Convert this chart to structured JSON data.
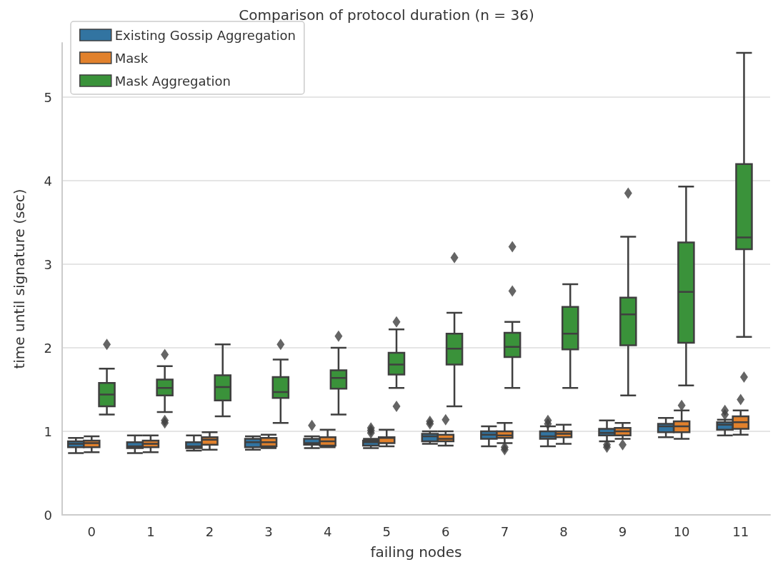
{
  "chart_data": {
    "type": "box",
    "title": "Comparison of protocol duration (n = 36)",
    "xlabel": "failing nodes",
    "ylabel": "time until signature (sec)",
    "categories": [
      "0",
      "1",
      "2",
      "3",
      "4",
      "5",
      "6",
      "7",
      "8",
      "9",
      "10",
      "11"
    ],
    "ylim": [
      0,
      5.65
    ],
    "yticks": [
      0,
      1,
      2,
      3,
      4,
      5
    ],
    "grid": "y",
    "legend": "top left",
    "marker": "diamond",
    "series": [
      {
        "name": "Existing Gossip Aggregation",
        "color": "#3274a1",
        "boxes": [
          {
            "low": 0.74,
            "q1": 0.81,
            "median": 0.85,
            "q3": 0.88,
            "high": 0.92
          },
          {
            "low": 0.74,
            "q1": 0.8,
            "median": 0.82,
            "q3": 0.87,
            "high": 0.95
          },
          {
            "low": 0.77,
            "q1": 0.8,
            "median": 0.82,
            "q3": 0.87,
            "high": 0.95
          },
          {
            "low": 0.78,
            "q1": 0.81,
            "median": 0.87,
            "q3": 0.91,
            "high": 0.94
          },
          {
            "low": 0.8,
            "q1": 0.84,
            "median": 0.86,
            "q3": 0.91,
            "high": 0.94,
            "outliers": [
              1.07
            ]
          },
          {
            "low": 0.8,
            "q1": 0.83,
            "median": 0.87,
            "q3": 0.89,
            "high": 0.91,
            "outliers": [
              0.98,
              1.01,
              1.04
            ]
          },
          {
            "low": 0.85,
            "q1": 0.88,
            "median": 0.94,
            "q3": 0.97,
            "high": 1.0,
            "outliers": [
              1.09,
              1.12
            ]
          },
          {
            "low": 0.82,
            "q1": 0.91,
            "median": 0.96,
            "q3": 1.0,
            "high": 1.06
          },
          {
            "low": 0.82,
            "q1": 0.91,
            "median": 0.94,
            "q3": 1.0,
            "high": 1.06,
            "outliers": [
              1.09,
              1.13
            ]
          },
          {
            "low": 0.88,
            "q1": 0.95,
            "median": 0.98,
            "q3": 1.03,
            "high": 1.13,
            "outliers": [
              0.81,
              0.84
            ]
          },
          {
            "low": 0.93,
            "q1": 0.99,
            "median": 1.06,
            "q3": 1.09,
            "high": 1.16
          },
          {
            "low": 0.95,
            "q1": 1.02,
            "median": 1.08,
            "q3": 1.11,
            "high": 1.14,
            "outliers": [
              1.2,
              1.25
            ]
          }
        ]
      },
      {
        "name": "Mask",
        "color": "#e1812c",
        "boxes": [
          {
            "low": 0.75,
            "q1": 0.81,
            "median": 0.86,
            "q3": 0.89,
            "high": 0.94
          },
          {
            "low": 0.75,
            "q1": 0.81,
            "median": 0.85,
            "q3": 0.89,
            "high": 0.95
          },
          {
            "low": 0.78,
            "q1": 0.84,
            "median": 0.9,
            "q3": 0.93,
            "high": 0.99
          },
          {
            "low": 0.8,
            "q1": 0.82,
            "median": 0.87,
            "q3": 0.92,
            "high": 0.96
          },
          {
            "low": 0.81,
            "q1": 0.83,
            "median": 0.88,
            "q3": 0.93,
            "high": 1.02
          },
          {
            "low": 0.82,
            "q1": 0.86,
            "median": 0.92,
            "q3": 0.93,
            "high": 1.02
          },
          {
            "low": 0.83,
            "q1": 0.88,
            "median": 0.91,
            "q3": 0.96,
            "high": 1.0,
            "outliers": [
              1.14
            ]
          },
          {
            "low": 0.86,
            "q1": 0.92,
            "median": 0.95,
            "q3": 1.0,
            "high": 1.1,
            "outliers": [
              0.78,
              0.81
            ]
          },
          {
            "low": 0.85,
            "q1": 0.93,
            "median": 0.97,
            "q3": 1.0,
            "high": 1.08
          },
          {
            "low": 0.91,
            "q1": 0.95,
            "median": 1.0,
            "q3": 1.04,
            "high": 1.1,
            "outliers": [
              0.84
            ]
          },
          {
            "low": 0.91,
            "q1": 0.99,
            "median": 1.06,
            "q3": 1.12,
            "high": 1.25,
            "outliers": [
              1.31
            ]
          },
          {
            "low": 0.96,
            "q1": 1.03,
            "median": 1.11,
            "q3": 1.18,
            "high": 1.25,
            "outliers": [
              1.38
            ]
          }
        ]
      },
      {
        "name": "Mask Aggregation",
        "color": "#3a923a",
        "boxes": [
          {
            "low": 1.2,
            "q1": 1.3,
            "median": 1.44,
            "q3": 1.58,
            "high": 1.75,
            "outliers": [
              2.04
            ]
          },
          {
            "low": 1.23,
            "q1": 1.43,
            "median": 1.52,
            "q3": 1.62,
            "high": 1.78,
            "outliers": [
              1.1,
              1.13,
              1.92
            ]
          },
          {
            "low": 1.18,
            "q1": 1.37,
            "median": 1.53,
            "q3": 1.67,
            "high": 2.04
          },
          {
            "low": 1.1,
            "q1": 1.4,
            "median": 1.47,
            "q3": 1.65,
            "high": 1.86,
            "outliers": [
              2.04
            ]
          },
          {
            "low": 1.2,
            "q1": 1.51,
            "median": 1.64,
            "q3": 1.73,
            "high": 2.0,
            "outliers": [
              2.14
            ]
          },
          {
            "low": 1.52,
            "q1": 1.68,
            "median": 1.8,
            "q3": 1.94,
            "high": 2.22,
            "outliers": [
              1.3,
              2.31
            ]
          },
          {
            "low": 1.3,
            "q1": 1.8,
            "median": 1.99,
            "q3": 2.17,
            "high": 2.42,
            "outliers": [
              3.08
            ]
          },
          {
            "low": 1.52,
            "q1": 1.89,
            "median": 2.01,
            "q3": 2.18,
            "high": 2.31,
            "outliers": [
              2.68,
              3.21
            ]
          },
          {
            "low": 1.52,
            "q1": 1.98,
            "median": 2.17,
            "q3": 2.49,
            "high": 2.76
          },
          {
            "low": 1.43,
            "q1": 2.03,
            "median": 2.4,
            "q3": 2.6,
            "high": 3.33,
            "outliers": [
              3.85
            ]
          },
          {
            "low": 1.55,
            "q1": 2.06,
            "median": 2.67,
            "q3": 3.26,
            "high": 3.93
          },
          {
            "low": 2.13,
            "q1": 3.18,
            "median": 3.32,
            "q3": 4.2,
            "high": 5.53,
            "outliers": [
              1.65
            ]
          }
        ]
      }
    ]
  }
}
